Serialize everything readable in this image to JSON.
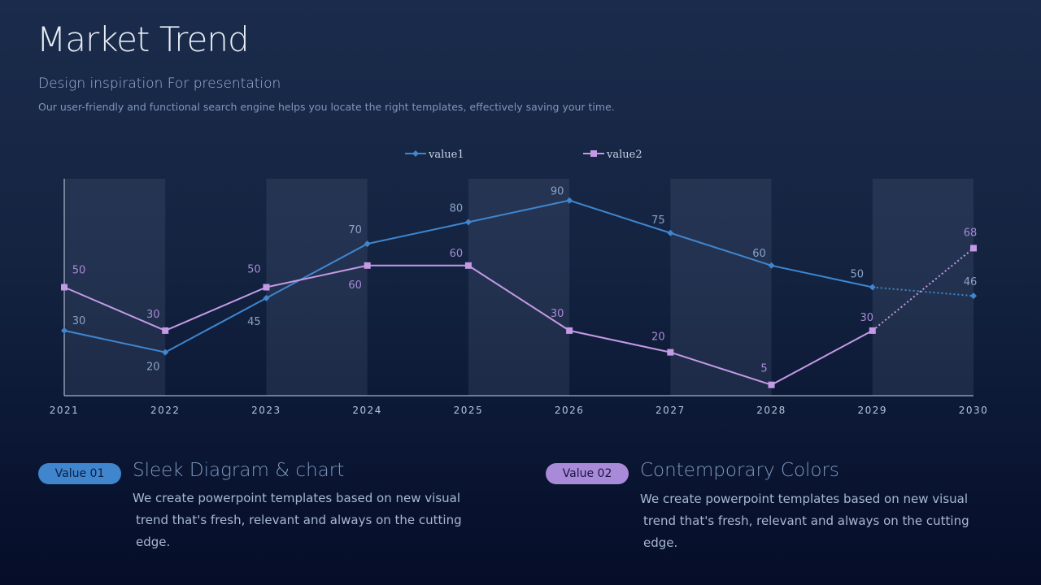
{
  "header": {
    "title": "Market Trend",
    "subtitle": "Design inspiration For presentation",
    "description": "Our user-friendly and functional search engine helps you locate the right templates, effectively saving your time."
  },
  "chart_data": {
    "type": "line",
    "categories": [
      "2021",
      "2022",
      "2023",
      "2024",
      "2025",
      "2026",
      "2027",
      "2028",
      "2029",
      "2030"
    ],
    "series": [
      {
        "name": "value1",
        "values": [
          30,
          20,
          45,
          70,
          80,
          90,
          75,
          60,
          50,
          46
        ],
        "color": "#3f86cf",
        "marker": "diamond",
        "dotted_last_segment": true
      },
      {
        "name": "value2",
        "values": [
          50,
          30,
          50,
          60,
          60,
          30,
          20,
          5,
          30,
          68
        ],
        "color": "#c49ae6",
        "marker": "square",
        "dotted_last_segment": true
      }
    ],
    "ylim": [
      0,
      100
    ],
    "legend": "top-center",
    "grid": false,
    "alternating_bands": true
  },
  "features": [
    {
      "badge": "Value 01",
      "title": "Sleek Diagram & chart",
      "line1": "We create powerpoint templates based on new visual",
      "line2": "trend that's fresh, relevant and always on the cutting edge.",
      "color": "#3f86cf"
    },
    {
      "badge": "Value 02",
      "title": "Contemporary Colors",
      "line1": "We create powerpoint templates based on new visual",
      "line2": "trend that's fresh, relevant and always on the cutting edge.",
      "color": "#a98ad8"
    }
  ]
}
